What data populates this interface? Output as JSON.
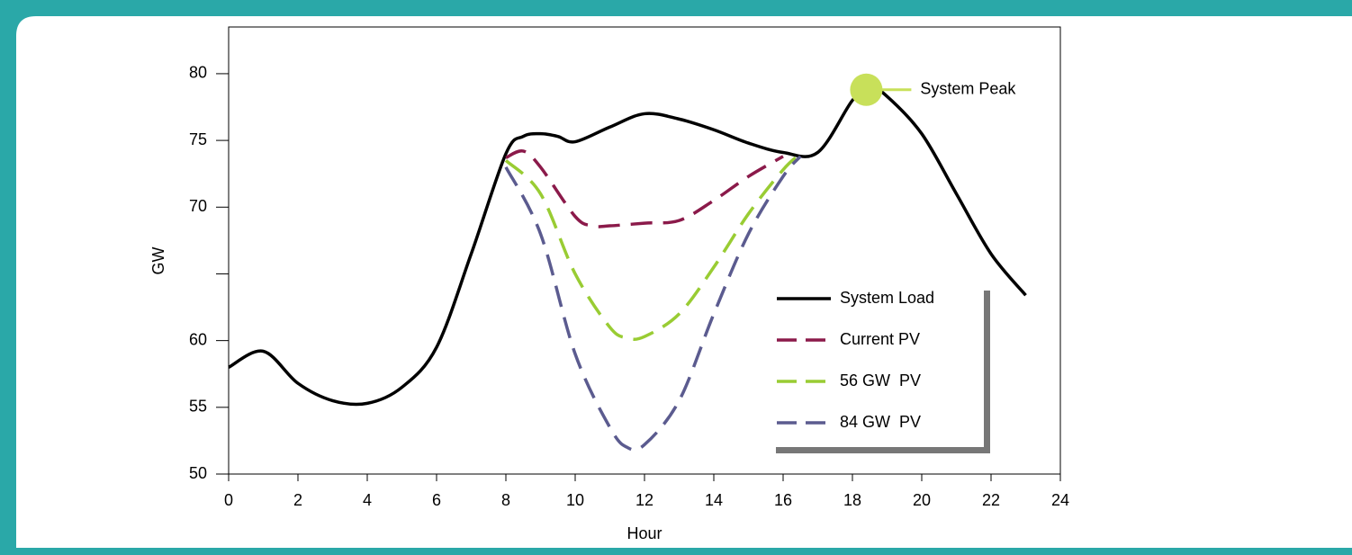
{
  "chart_data": {
    "type": "line",
    "xlabel": "Hour",
    "ylabel": "GW",
    "xlim": [
      0,
      24
    ],
    "xticks": [
      0,
      2,
      4,
      6,
      8,
      10,
      12,
      14,
      16,
      18,
      20,
      22,
      24
    ],
    "ylim": [
      50,
      83.5
    ],
    "yticks": [
      50,
      55,
      60,
      {
        "value": 65,
        "label": null
      },
      70,
      75,
      80
    ],
    "legend": "lower right",
    "series": [
      {
        "name": "System Load",
        "color": "#000000",
        "dashed": false,
        "x": [
          0,
          1,
          2,
          3,
          4,
          5,
          6,
          7,
          8,
          8.5,
          9,
          9.5,
          10,
          11,
          12,
          13,
          14,
          15,
          16,
          17,
          18,
          18.5,
          19,
          20,
          21,
          22,
          23
        ],
        "values": [
          58,
          59.2,
          56.8,
          55.5,
          55.3,
          56.5,
          59.5,
          66.5,
          74,
          75.3,
          75.5,
          75.3,
          74.9,
          76,
          77,
          76.6,
          75.8,
          74.8,
          74.1,
          74.1,
          78,
          79,
          78.3,
          75.5,
          71,
          66.5,
          63.4
        ]
      },
      {
        "name": "Current PV",
        "color": "#8b1a4a",
        "dashed": true,
        "x": [
          8,
          8.5,
          9,
          10,
          10.5,
          11,
          12,
          13,
          14,
          15,
          16
        ],
        "values": [
          73.7,
          74.2,
          73,
          69.3,
          68.6,
          68.6,
          68.8,
          69,
          70.5,
          72.3,
          73.8
        ]
      },
      {
        "name": "56 GW  PV",
        "color": "#99cc33",
        "dashed": true,
        "x": [
          8,
          9,
          10,
          11,
          11.5,
          12,
          13,
          14,
          15,
          16,
          16.5
        ],
        "values": [
          73.5,
          71,
          65,
          61,
          60.2,
          60.3,
          62,
          65.5,
          69.5,
          72.8,
          74
        ]
      },
      {
        "name": "84 GW  PV",
        "color": "#5b5b8f",
        "dashed": true,
        "x": [
          8,
          9,
          10,
          11,
          11.5,
          12,
          13,
          14,
          15,
          16,
          16.5
        ],
        "values": [
          73,
          68,
          59,
          53.5,
          52,
          52.2,
          55.5,
          62,
          68,
          72.3,
          73.8
        ]
      }
    ],
    "annotations": [
      {
        "text": "System Peak",
        "x": 18.4,
        "y": 78.8,
        "color": "#c8e05a"
      }
    ]
  }
}
